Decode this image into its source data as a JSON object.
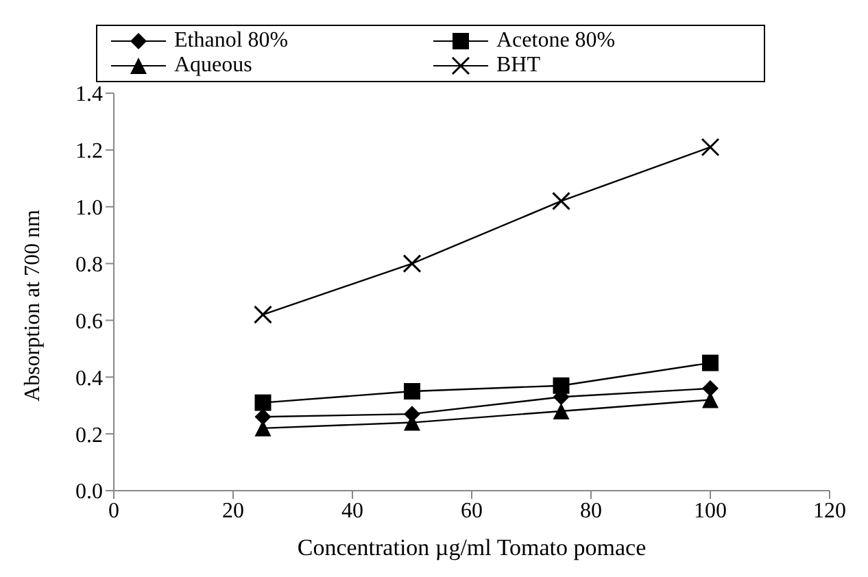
{
  "chart_data": {
    "type": "line",
    "xlabel": "Concentration µg/ml Tomato pomace",
    "ylabel": "Absorption at 700 nm",
    "x": [
      25,
      50,
      75,
      100
    ],
    "series": [
      {
        "name": "Ethanol 80%",
        "color": "#000000",
        "marker": "diamond",
        "values": [
          0.26,
          0.27,
          0.33,
          0.36
        ]
      },
      {
        "name": "Acetone 80%",
        "color": "#000000",
        "marker": "square",
        "values": [
          0.31,
          0.35,
          0.37,
          0.45
        ]
      },
      {
        "name": "Aqueous",
        "color": "#000000",
        "marker": "triangle",
        "values": [
          0.22,
          0.24,
          0.28,
          0.32
        ]
      },
      {
        "name": "BHT",
        "color": "#000000",
        "marker": "cross",
        "values": [
          0.62,
          0.8,
          1.02,
          1.21
        ]
      }
    ],
    "xlim": [
      0,
      120
    ],
    "xticks": [
      0,
      20,
      40,
      60,
      80,
      100,
      120
    ],
    "ylim": [
      0,
      1.4
    ],
    "yticks": [
      {
        "value": 0,
        "label": "0.0"
      },
      0.2,
      0.4,
      0.6,
      0.8,
      {
        "value": 1,
        "label": "1.0"
      },
      1.2,
      1.4
    ],
    "grid": false,
    "legend": "top",
    "line_style": "solid"
  }
}
